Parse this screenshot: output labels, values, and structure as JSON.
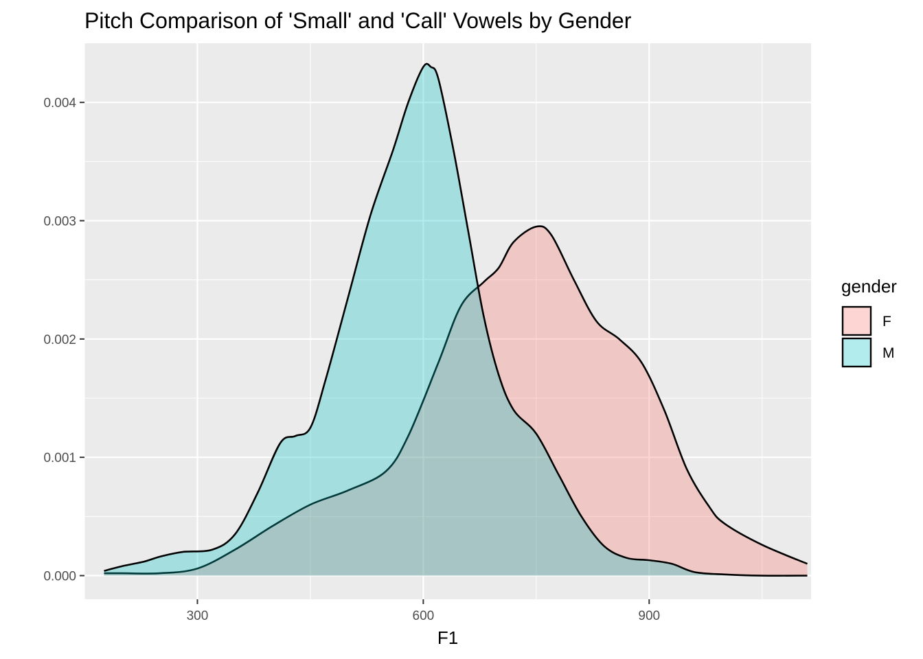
{
  "chart_data": {
    "type": "area",
    "subtype": "density",
    "title": "Pitch Comparison of 'Small' and 'Call' Vowels by Gender",
    "xlabel": "F1",
    "ylabel": "",
    "xlim": [
      150,
      1115
    ],
    "ylim": [
      -0.0002,
      0.0045
    ],
    "x_ticks": [
      300,
      600,
      900
    ],
    "x_tick_labels": [
      "300",
      "600",
      "900"
    ],
    "y_ticks": [
      0,
      0.001,
      0.002,
      0.003,
      0.004
    ],
    "y_tick_labels": [
      "0.000",
      "0.001",
      "0.002",
      "0.003",
      "0.004"
    ],
    "grid": true,
    "legend": {
      "title": "gender",
      "position": "right"
    },
    "series": [
      {
        "name": "F",
        "color": "#F8766D",
        "x": [
          176,
          200,
          250,
          300,
          350,
          400,
          450,
          500,
          550,
          580,
          620,
          650,
          680,
          700,
          720,
          750,
          770,
          800,
          830,
          860,
          890,
          920,
          950,
          980,
          1000,
          1050,
          1110
        ],
        "y": [
          2e-05,
          2e-05,
          2e-05,
          6e-05,
          0.00022,
          0.00042,
          0.0006,
          0.00072,
          0.00088,
          0.00118,
          0.0018,
          0.00228,
          0.00248,
          0.0026,
          0.00282,
          0.00295,
          0.00288,
          0.0025,
          0.00215,
          0.002,
          0.0018,
          0.0014,
          0.0009,
          0.00058,
          0.00044,
          0.00026,
          0.0001
        ]
      },
      {
        "name": "M",
        "color": "#00BFC4",
        "x": [
          176,
          200,
          230,
          250,
          280,
          320,
          350,
          380,
          410,
          430,
          450,
          470,
          500,
          530,
          560,
          580,
          600,
          610,
          620,
          640,
          660,
          680,
          700,
          720,
          750,
          780,
          810,
          840,
          870,
          900,
          930,
          960,
          1000,
          1050,
          1110
        ],
        "y": [
          4e-05,
          8e-05,
          0.00012,
          0.00016,
          0.0002,
          0.00022,
          0.00035,
          0.0007,
          0.00112,
          0.00118,
          0.00125,
          0.00165,
          0.00235,
          0.00305,
          0.0036,
          0.004,
          0.0043,
          0.0043,
          0.0042,
          0.0036,
          0.0029,
          0.0022,
          0.0017,
          0.0014,
          0.0012,
          0.00085,
          0.0005,
          0.00025,
          0.00015,
          0.00013,
          0.0001,
          3e-05,
          1e-05,
          0.0,
          0.0
        ]
      }
    ]
  }
}
